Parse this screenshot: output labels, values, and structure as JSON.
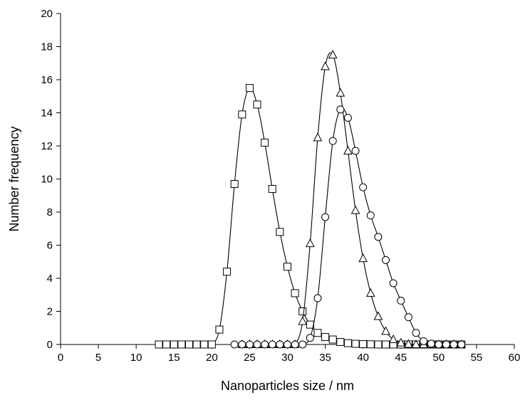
{
  "chart_data": {
    "type": "line",
    "title": "",
    "xlabel": "Nanoparticles size / nm",
    "ylabel": "Number frequency",
    "xlim": [
      0,
      60
    ],
    "ylim": [
      0,
      20
    ],
    "x_ticks": [
      0,
      5,
      10,
      15,
      20,
      25,
      30,
      35,
      40,
      45,
      50,
      55,
      60
    ],
    "y_ticks": [
      0,
      2,
      4,
      6,
      8,
      10,
      12,
      14,
      16,
      18,
      20
    ],
    "grid": false,
    "legend": "none",
    "series": [
      {
        "marker": "square",
        "color": "#000000",
        "x": [
          13,
          14,
          15,
          16,
          17,
          18,
          19,
          20,
          21,
          22,
          23,
          24,
          25,
          26,
          27,
          28,
          29,
          30,
          31,
          32,
          33,
          34,
          35,
          36,
          37,
          38,
          39,
          40,
          41,
          42,
          43,
          44,
          45,
          46,
          47,
          48,
          49,
          50,
          51,
          52,
          53
        ],
        "y": [
          0,
          0,
          0,
          0,
          0,
          0,
          0,
          0,
          0.9,
          4.4,
          9.7,
          13.9,
          15.5,
          14.5,
          12.2,
          9.4,
          6.8,
          4.7,
          3.1,
          2.0,
          1.2,
          0.7,
          0.45,
          0.3,
          0.15,
          0.08,
          0.04,
          0.02,
          0.01,
          0,
          0,
          0,
          0,
          0,
          0,
          0,
          0,
          0,
          0,
          0,
          0
        ]
      },
      {
        "marker": "triangle",
        "color": "#000000",
        "x": [
          24,
          25,
          26,
          27,
          28,
          29,
          30,
          31,
          32,
          33,
          34,
          35,
          36,
          37,
          38,
          39,
          40,
          41,
          42,
          43,
          44,
          45,
          46,
          47,
          48,
          49,
          50,
          51,
          52,
          53
        ],
        "y": [
          0,
          0,
          0,
          0,
          0,
          0,
          0,
          0,
          1.4,
          6.1,
          12.5,
          16.8,
          17.5,
          15.2,
          11.7,
          8.1,
          5.2,
          3.1,
          1.7,
          0.8,
          0.3,
          0.1,
          0.02,
          0,
          0,
          0,
          0,
          0,
          0,
          0
        ]
      },
      {
        "marker": "circle",
        "color": "#000000",
        "x": [
          23,
          24,
          25,
          26,
          27,
          28,
          29,
          30,
          31,
          32,
          33,
          34,
          35,
          36,
          37,
          38,
          39,
          40,
          41,
          42,
          43,
          44,
          45,
          46,
          47,
          48,
          49,
          50,
          51,
          52,
          53
        ],
        "y": [
          0,
          0,
          0,
          0,
          0,
          0,
          0,
          0,
          0,
          0,
          0.4,
          2.8,
          7.7,
          12.3,
          14.2,
          13.7,
          11.7,
          9.5,
          7.8,
          6.5,
          5.1,
          3.7,
          2.65,
          1.65,
          0.7,
          0.2,
          0.05,
          0,
          0,
          0,
          0
        ]
      }
    ]
  }
}
